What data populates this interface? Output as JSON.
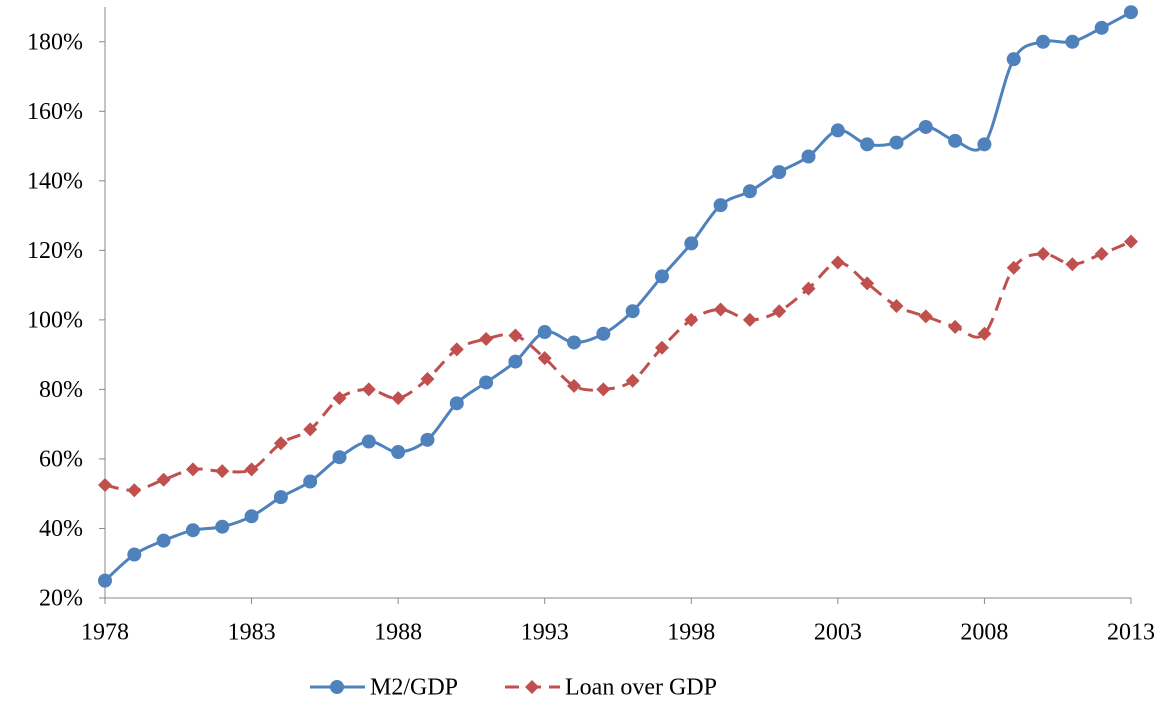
{
  "chart_data": {
    "type": "line",
    "x": [
      1978,
      1979,
      1980,
      1981,
      1982,
      1983,
      1984,
      1985,
      1986,
      1987,
      1988,
      1989,
      1990,
      1991,
      1992,
      1993,
      1994,
      1995,
      1996,
      1997,
      1998,
      1999,
      2000,
      2001,
      2002,
      2003,
      2004,
      2005,
      2006,
      2007,
      2008,
      2009,
      2010,
      2011,
      2012,
      2013
    ],
    "series": [
      {
        "name": "M2/GDP",
        "color": "#4f81bd",
        "marker": "circle",
        "dash": false,
        "values": [
          25,
          32.5,
          36.5,
          39.5,
          40.5,
          43.5,
          49,
          53.5,
          60.5,
          65,
          62,
          65.5,
          76,
          82,
          88,
          96.5,
          93.5,
          96,
          102.5,
          112.5,
          122,
          133,
          137,
          142.5,
          147,
          154.5,
          150.5,
          151,
          155.5,
          151.5,
          150.5,
          175,
          180,
          180,
          184,
          188.5
        ]
      },
      {
        "name": "Loan over GDP",
        "color": "#c0504d",
        "marker": "diamond",
        "dash": true,
        "values": [
          52.5,
          51,
          54,
          57,
          56.5,
          57,
          64.5,
          68.5,
          77.5,
          80,
          77.5,
          83,
          91.5,
          94.5,
          95.5,
          89,
          81,
          80,
          82.5,
          92,
          100,
          103,
          100,
          102.5,
          109,
          116.5,
          110.5,
          104,
          101,
          98,
          96,
          115,
          119,
          116,
          119,
          122.5
        ]
      }
    ],
    "xlim": [
      1978,
      2013
    ],
    "xticks": [
      1978,
      1983,
      1988,
      1993,
      1998,
      2003,
      2008,
      2013
    ],
    "ylim": [
      20,
      190
    ],
    "yticks": [
      {
        "value": 20,
        "label": "20%"
      },
      {
        "value": 40,
        "label": "40%"
      },
      {
        "value": 60,
        "label": "60%"
      },
      {
        "value": 80,
        "label": "80%"
      },
      {
        "value": 100,
        "label": "100%"
      },
      {
        "value": 120,
        "label": "120%"
      },
      {
        "value": 140,
        "label": "140%"
      },
      {
        "value": 160,
        "label": "160%"
      },
      {
        "value": 180,
        "label": "180%"
      }
    ],
    "grid": false,
    "legend": "bottom"
  }
}
